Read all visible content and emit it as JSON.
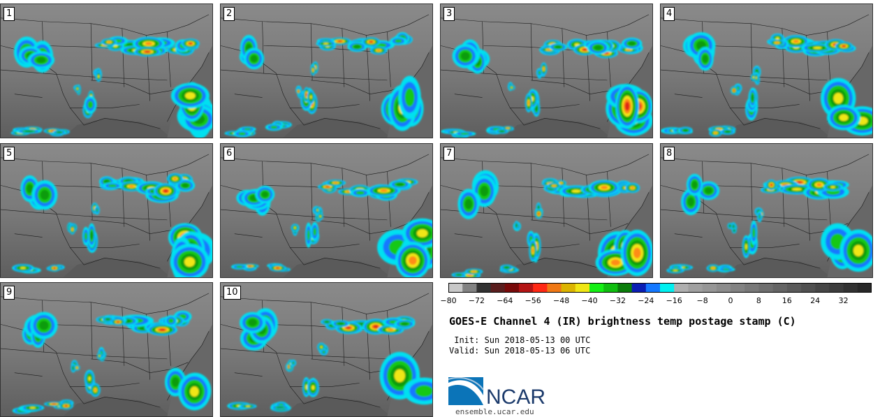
{
  "panels": [
    {
      "label": "1",
      "seed": 1
    },
    {
      "label": "2",
      "seed": 2
    },
    {
      "label": "3",
      "seed": 3
    },
    {
      "label": "4",
      "seed": 4
    },
    {
      "label": "5",
      "seed": 5
    },
    {
      "label": "6",
      "seed": 6
    },
    {
      "label": "7",
      "seed": 7
    },
    {
      "label": "8",
      "seed": 8
    },
    {
      "label": "9",
      "seed": 9
    },
    {
      "label": "10",
      "seed": 10
    }
  ],
  "colorbar": {
    "colors": [
      "#c8c8c8",
      "#828282",
      "#323232",
      "#5a1e1e",
      "#780a0a",
      "#b41414",
      "#ff2814",
      "#f07814",
      "#dcb400",
      "#f0e614",
      "#14f014",
      "#0fbe0f",
      "#0a7d0a",
      "#0a1eb4",
      "#1478ff",
      "#00f0f0",
      "#afafaf",
      "#a0a0a0",
      "#969696",
      "#8c8c8c",
      "#828282",
      "#787878",
      "#6e6e6e",
      "#646464",
      "#5a5a5a",
      "#505050",
      "#464646",
      "#3c3c3c",
      "#323232",
      "#282828"
    ],
    "tick_labels": [
      "-80",
      "-72",
      "-64",
      "-56",
      "-48",
      "-40",
      "-32",
      "-24",
      "-16",
      "-8",
      "0",
      "8",
      "16",
      "24",
      "32"
    ]
  },
  "title": "GOES-E Channel 4 (IR) brightness temp postage stamp (C)",
  "init": " Init: Sun 2018-05-13 00 UTC",
  "valid": "Valid: Sun 2018-05-13 06 UTC",
  "logo_text": "NCAR",
  "site": "ensemble.ucar.edu"
}
